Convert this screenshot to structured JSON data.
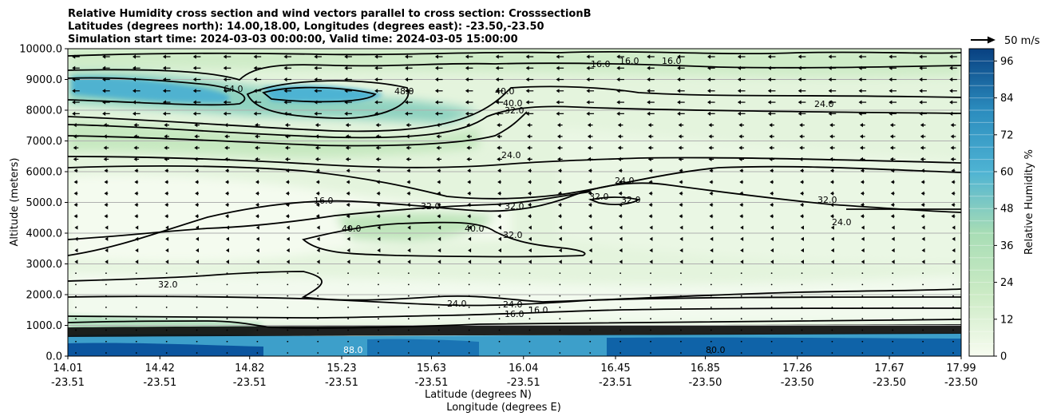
{
  "chart_data": {
    "type": "contour",
    "title_lines": [
      "Relative Humidity cross section and wind vectors parallel to cross section: CrosssectionB",
      "Latitudes (degrees north): 14.00,18.00, Longitudes (degrees east): -23.50,-23.50",
      "Simulation start time: 2024-03-03 00:00:00, Valid time: 2024-03-05 15:00:00"
    ],
    "ylabel": "Altitude (meters)",
    "xlabel_lat": "Latitude (degrees N)",
    "xlabel_lon": "Longitude (degrees E)",
    "ylim": [
      0,
      10000
    ],
    "y_ticks": [
      "0.0",
      "1000.0",
      "2000.0",
      "3000.0",
      "4000.0",
      "5000.0",
      "6000.0",
      "7000.0",
      "8000.0",
      "9000.0",
      "10000.0"
    ],
    "x_ticks": [
      {
        "lat": "14.01",
        "lon": "-23.51"
      },
      {
        "lat": "14.42",
        "lon": "-23.51"
      },
      {
        "lat": "14.82",
        "lon": "-23.51"
      },
      {
        "lat": "15.23",
        "lon": "-23.51"
      },
      {
        "lat": "15.63",
        "lon": "-23.51"
      },
      {
        "lat": "16.04",
        "lon": "-23.51"
      },
      {
        "lat": "16.45",
        "lon": "-23.51"
      },
      {
        "lat": "16.85",
        "lon": "-23.50"
      },
      {
        "lat": "17.26",
        "lon": "-23.50"
      },
      {
        "lat": "17.67",
        "lon": "-23.50"
      },
      {
        "lat": "17.99",
        "lon": "-23.50"
      }
    ],
    "grid": "horizontal",
    "colorbar": {
      "label": "Relative Humidity %",
      "range": [
        0,
        100
      ],
      "ticks": [
        "0",
        "12",
        "24",
        "36",
        "48",
        "60",
        "72",
        "84",
        "96"
      ],
      "colormap": "GnBu"
    },
    "quiver_key": "50 m/s",
    "contour_labels": [
      "16.0",
      "24.0",
      "32.0",
      "40.0",
      "48.0",
      "64.0",
      "80.0",
      "88.0"
    ]
  }
}
